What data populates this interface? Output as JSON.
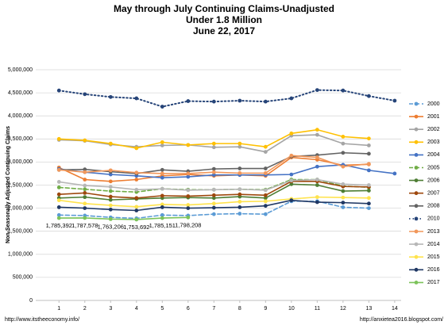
{
  "chart_data": {
    "type": "line",
    "title": [
      "May through July Continuing Claims-Unadjusted",
      "Under 1.8 Million",
      "June 22, 2017"
    ],
    "y_label": "Non-Seasonally Adjusted Continuing Claims",
    "footer_left": "http://www.itstheeconomy.info/",
    "footer_right": "http://anxietea2016.blogspot.com/",
    "x": [
      1,
      2,
      3,
      4,
      5,
      6,
      7,
      8,
      9,
      10,
      11,
      12,
      13,
      14
    ],
    "xlim": [
      0.1,
      14.25
    ],
    "xticks": [
      1,
      2,
      3,
      4,
      5,
      6,
      7,
      8,
      9,
      10,
      11,
      12,
      13,
      14
    ],
    "ylim": [
      0,
      5000000
    ],
    "yticks": [
      0,
      {
        "value": 500000,
        "label": "500,000"
      },
      {
        "value": 1000000,
        "label": "1,000,000"
      },
      {
        "value": 1500000,
        "label": "1,500,000"
      },
      {
        "value": 2000000,
        "label": "2,000,000"
      },
      {
        "value": 2500000,
        "label": "2,500,000"
      },
      {
        "value": 3000000,
        "label": "3,000,000"
      },
      {
        "value": 3500000,
        "label": "3,500,000"
      },
      {
        "value": 4000000,
        "label": "4,000,000"
      },
      {
        "value": 4500000,
        "label": "4,500,000"
      },
      {
        "value": 5000000,
        "label": "5,000,000"
      }
    ],
    "grid": true,
    "legend": "right",
    "series": [
      {
        "name": "2000",
        "color": "#5b9bd5",
        "dash": "dashed",
        "values": [
          1850000,
          1840000,
          1800000,
          1780000,
          1850000,
          1840000,
          1870000,
          1880000,
          1870000,
          2150000,
          2150000,
          2020000,
          2000000,
          null
        ]
      },
      {
        "name": "2001",
        "color": "#ed7d31",
        "values": [
          2880000,
          2620000,
          2580000,
          2620000,
          2700000,
          2730000,
          2700000,
          2720000,
          2700000,
          3100000,
          3050000,
          2930000,
          2950000,
          null
        ]
      },
      {
        "name": "2002",
        "color": "#a5a5a5",
        "values": [
          3480000,
          3460000,
          3380000,
          3330000,
          3360000,
          3370000,
          3320000,
          3330000,
          3220000,
          3570000,
          3590000,
          3400000,
          3360000,
          null
        ]
      },
      {
        "name": "2003",
        "color": "#ffc000",
        "values": [
          3500000,
          3470000,
          3400000,
          3300000,
          3430000,
          3370000,
          3400000,
          3400000,
          3330000,
          3620000,
          3700000,
          3550000,
          3510000,
          null
        ]
      },
      {
        "name": "2004",
        "color": "#4472c4",
        "values": [
          2850000,
          2780000,
          2730000,
          2700000,
          2660000,
          2680000,
          2720000,
          2720000,
          2720000,
          2730000,
          2900000,
          2940000,
          2820000,
          2750000
        ]
      },
      {
        "name": "2005",
        "color": "#70ad47",
        "dash": "dashed",
        "values": [
          2450000,
          2410000,
          2370000,
          2350000,
          2420000,
          2400000,
          2400000,
          2410000,
          2400000,
          2620000,
          2620000,
          2480000,
          2450000,
          null
        ]
      },
      {
        "name": "2006",
        "color": "#4e7d34",
        "values": [
          2220000,
          2240000,
          2180000,
          2200000,
          2220000,
          2230000,
          2220000,
          2250000,
          2220000,
          2520000,
          2500000,
          2370000,
          2380000,
          null
        ]
      },
      {
        "name": "2007",
        "color": "#9e480e",
        "values": [
          2300000,
          2330000,
          2250000,
          2220000,
          2270000,
          2260000,
          2280000,
          2300000,
          2280000,
          2580000,
          2580000,
          2470000,
          2460000,
          null
        ]
      },
      {
        "name": "2008",
        "color": "#636363",
        "values": [
          2830000,
          2840000,
          2790000,
          2750000,
          2830000,
          2800000,
          2850000,
          2860000,
          2860000,
          3120000,
          3150000,
          3200000,
          3180000,
          null
        ]
      },
      {
        "name": "2010",
        "color": "#264478",
        "dash": "dotted",
        "values": [
          4550000,
          4470000,
          4410000,
          4380000,
          4200000,
          4320000,
          4310000,
          4330000,
          4310000,
          4380000,
          4560000,
          4550000,
          4430000,
          4330000
        ]
      },
      {
        "name": "2013",
        "color": "#f1975a",
        "values": [
          2830000,
          2780000,
          2820000,
          2770000,
          2750000,
          2750000,
          2780000,
          2760000,
          2760000,
          3140000,
          3100000,
          2900000,
          2960000,
          null
        ]
      },
      {
        "name": "2014",
        "color": "#b7b7b7",
        "values": [
          2570000,
          2490000,
          2460000,
          2400000,
          2420000,
          2390000,
          2400000,
          2410000,
          2390000,
          2600000,
          2620000,
          2520000,
          2500000,
          null
        ]
      },
      {
        "name": "2015",
        "color": "#ffe34d",
        "values": [
          2170000,
          2100000,
          2060000,
          2030000,
          2080000,
          2070000,
          2100000,
          2140000,
          2150000,
          2200000,
          2240000,
          2230000,
          2220000,
          null
        ]
      },
      {
        "name": "2016",
        "color": "#203864",
        "values": [
          2020000,
          2000000,
          1970000,
          1950000,
          2020000,
          2000000,
          2010000,
          2020000,
          2050000,
          2170000,
          2130000,
          2120000,
          2100000,
          null
        ]
      },
      {
        "name": "2017",
        "color": "#7cc35a",
        "values": [
          1785392,
          1787578,
          1763206,
          1753692,
          1785151,
          1798208,
          null,
          null,
          null,
          null,
          null,
          null,
          null,
          null
        ],
        "value_labels": [
          "1,785,392",
          "1,787,578",
          "1,763,206",
          "1,753,692",
          "1,785,151",
          "1,798,208",
          null,
          null,
          null,
          null,
          null,
          null,
          null,
          null
        ]
      }
    ]
  }
}
